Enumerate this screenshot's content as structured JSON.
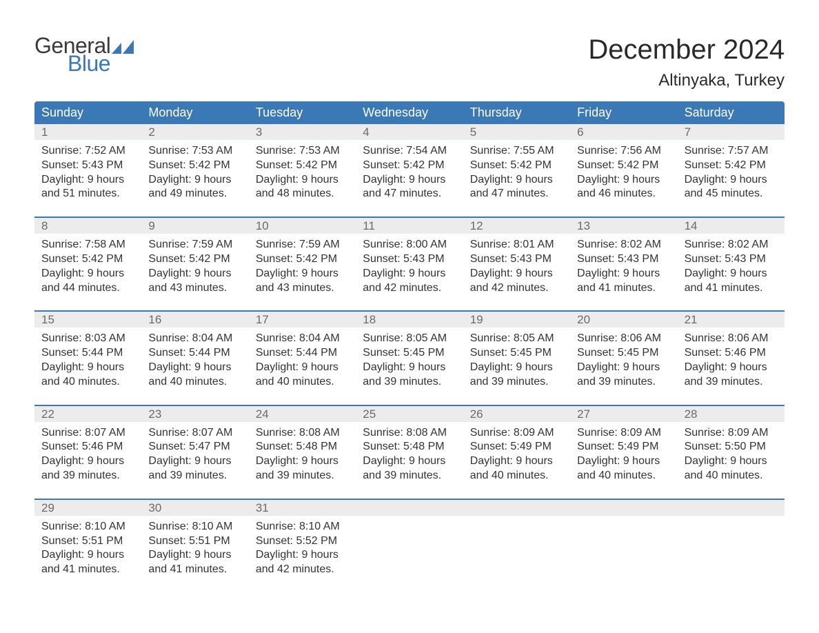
{
  "brand": {
    "word1": "General",
    "word2": "Blue",
    "color": "#3a78b6"
  },
  "title": "December 2024",
  "location": "Altinyaka, Turkey",
  "colors": {
    "header_bg": "#3a78b6",
    "header_text": "#ffffff",
    "daynum_bg": "#ececec",
    "daynum_text": "#6a6a6a",
    "body_text": "#333333",
    "rule": "#3a78b6"
  },
  "weekdays": [
    "Sunday",
    "Monday",
    "Tuesday",
    "Wednesday",
    "Thursday",
    "Friday",
    "Saturday"
  ],
  "labels": {
    "sunrise": "Sunrise:",
    "sunset": "Sunset:",
    "daylight": "Daylight:"
  },
  "weeks": [
    [
      {
        "n": "1",
        "sunrise": "7:52 AM",
        "sunset": "5:43 PM",
        "dl1": "9 hours",
        "dl2": "and 51 minutes."
      },
      {
        "n": "2",
        "sunrise": "7:53 AM",
        "sunset": "5:42 PM",
        "dl1": "9 hours",
        "dl2": "and 49 minutes."
      },
      {
        "n": "3",
        "sunrise": "7:53 AM",
        "sunset": "5:42 PM",
        "dl1": "9 hours",
        "dl2": "and 48 minutes."
      },
      {
        "n": "4",
        "sunrise": "7:54 AM",
        "sunset": "5:42 PM",
        "dl1": "9 hours",
        "dl2": "and 47 minutes."
      },
      {
        "n": "5",
        "sunrise": "7:55 AM",
        "sunset": "5:42 PM",
        "dl1": "9 hours",
        "dl2": "and 47 minutes."
      },
      {
        "n": "6",
        "sunrise": "7:56 AM",
        "sunset": "5:42 PM",
        "dl1": "9 hours",
        "dl2": "and 46 minutes."
      },
      {
        "n": "7",
        "sunrise": "7:57 AM",
        "sunset": "5:42 PM",
        "dl1": "9 hours",
        "dl2": "and 45 minutes."
      }
    ],
    [
      {
        "n": "8",
        "sunrise": "7:58 AM",
        "sunset": "5:42 PM",
        "dl1": "9 hours",
        "dl2": "and 44 minutes."
      },
      {
        "n": "9",
        "sunrise": "7:59 AM",
        "sunset": "5:42 PM",
        "dl1": "9 hours",
        "dl2": "and 43 minutes."
      },
      {
        "n": "10",
        "sunrise": "7:59 AM",
        "sunset": "5:42 PM",
        "dl1": "9 hours",
        "dl2": "and 43 minutes."
      },
      {
        "n": "11",
        "sunrise": "8:00 AM",
        "sunset": "5:43 PM",
        "dl1": "9 hours",
        "dl2": "and 42 minutes."
      },
      {
        "n": "12",
        "sunrise": "8:01 AM",
        "sunset": "5:43 PM",
        "dl1": "9 hours",
        "dl2": "and 42 minutes."
      },
      {
        "n": "13",
        "sunrise": "8:02 AM",
        "sunset": "5:43 PM",
        "dl1": "9 hours",
        "dl2": "and 41 minutes."
      },
      {
        "n": "14",
        "sunrise": "8:02 AM",
        "sunset": "5:43 PM",
        "dl1": "9 hours",
        "dl2": "and 41 minutes."
      }
    ],
    [
      {
        "n": "15",
        "sunrise": "8:03 AM",
        "sunset": "5:44 PM",
        "dl1": "9 hours",
        "dl2": "and 40 minutes."
      },
      {
        "n": "16",
        "sunrise": "8:04 AM",
        "sunset": "5:44 PM",
        "dl1": "9 hours",
        "dl2": "and 40 minutes."
      },
      {
        "n": "17",
        "sunrise": "8:04 AM",
        "sunset": "5:44 PM",
        "dl1": "9 hours",
        "dl2": "and 40 minutes."
      },
      {
        "n": "18",
        "sunrise": "8:05 AM",
        "sunset": "5:45 PM",
        "dl1": "9 hours",
        "dl2": "and 39 minutes."
      },
      {
        "n": "19",
        "sunrise": "8:05 AM",
        "sunset": "5:45 PM",
        "dl1": "9 hours",
        "dl2": "and 39 minutes."
      },
      {
        "n": "20",
        "sunrise": "8:06 AM",
        "sunset": "5:45 PM",
        "dl1": "9 hours",
        "dl2": "and 39 minutes."
      },
      {
        "n": "21",
        "sunrise": "8:06 AM",
        "sunset": "5:46 PM",
        "dl1": "9 hours",
        "dl2": "and 39 minutes."
      }
    ],
    [
      {
        "n": "22",
        "sunrise": "8:07 AM",
        "sunset": "5:46 PM",
        "dl1": "9 hours",
        "dl2": "and 39 minutes."
      },
      {
        "n": "23",
        "sunrise": "8:07 AM",
        "sunset": "5:47 PM",
        "dl1": "9 hours",
        "dl2": "and 39 minutes."
      },
      {
        "n": "24",
        "sunrise": "8:08 AM",
        "sunset": "5:48 PM",
        "dl1": "9 hours",
        "dl2": "and 39 minutes."
      },
      {
        "n": "25",
        "sunrise": "8:08 AM",
        "sunset": "5:48 PM",
        "dl1": "9 hours",
        "dl2": "and 39 minutes."
      },
      {
        "n": "26",
        "sunrise": "8:09 AM",
        "sunset": "5:49 PM",
        "dl1": "9 hours",
        "dl2": "and 40 minutes."
      },
      {
        "n": "27",
        "sunrise": "8:09 AM",
        "sunset": "5:49 PM",
        "dl1": "9 hours",
        "dl2": "and 40 minutes."
      },
      {
        "n": "28",
        "sunrise": "8:09 AM",
        "sunset": "5:50 PM",
        "dl1": "9 hours",
        "dl2": "and 40 minutes."
      }
    ],
    [
      {
        "n": "29",
        "sunrise": "8:10 AM",
        "sunset": "5:51 PM",
        "dl1": "9 hours",
        "dl2": "and 41 minutes."
      },
      {
        "n": "30",
        "sunrise": "8:10 AM",
        "sunset": "5:51 PM",
        "dl1": "9 hours",
        "dl2": "and 41 minutes."
      },
      {
        "n": "31",
        "sunrise": "8:10 AM",
        "sunset": "5:52 PM",
        "dl1": "9 hours",
        "dl2": "and 42 minutes."
      },
      null,
      null,
      null,
      null
    ]
  ]
}
